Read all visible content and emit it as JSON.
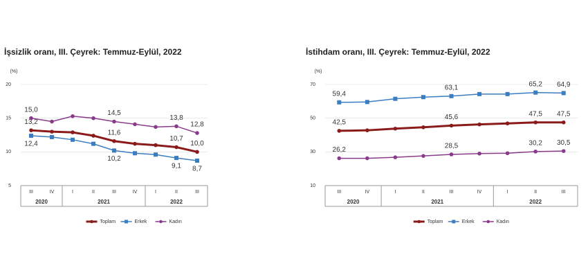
{
  "chart_data": [
    {
      "type": "line",
      "title": "İşsizlik oranı, III. Çeyrek: Temmuz-Eylül, 2022",
      "y_label": "(%)",
      "categories": [
        "III",
        "IV",
        "I",
        "II",
        "III",
        "IV",
        "I",
        "II",
        "III"
      ],
      "groups": [
        {
          "name": "2020",
          "size": 2
        },
        {
          "name": "2021",
          "size": 4
        },
        {
          "name": "2022",
          "size": 3
        }
      ],
      "ylim": [
        5,
        20
      ],
      "yticks": [
        5,
        10,
        15,
        20
      ],
      "series": [
        {
          "name": "Toplam",
          "color": "#8b1a1a",
          "width": 3,
          "marker": "circle",
          "label_position": "above",
          "values": [
            13.2,
            13.0,
            12.9,
            12.4,
            11.6,
            11.2,
            11.0,
            10.7,
            10.0
          ],
          "value_labels": [
            "13,2",
            null,
            null,
            null,
            "11,6",
            null,
            null,
            "10,7",
            "10,0"
          ]
        },
        {
          "name": "Erkek",
          "color": "#3a7dc0",
          "width": 1.5,
          "marker": "square",
          "label_position": "below",
          "values": [
            12.4,
            12.2,
            11.8,
            11.2,
            10.2,
            9.8,
            9.6,
            9.1,
            8.7
          ],
          "value_labels": [
            "12,4",
            null,
            null,
            null,
            "10,2",
            null,
            null,
            "9,1",
            "8,7"
          ]
        },
        {
          "name": "Kadın",
          "color": "#8a3a8a",
          "width": 1.5,
          "marker": "circle",
          "label_position": "above",
          "values": [
            15.0,
            14.5,
            15.3,
            15.0,
            14.5,
            14.1,
            13.7,
            13.8,
            12.8
          ],
          "value_labels": [
            "15,0",
            null,
            null,
            null,
            "14,5",
            null,
            null,
            "13,8",
            "12,8"
          ]
        }
      ]
    },
    {
      "type": "line",
      "title": "İstihdam oranı, III. Çeyrek: Temmuz-Eylül, 2022",
      "y_label": "(%)",
      "categories": [
        "III",
        "IV",
        "I",
        "II",
        "III",
        "IV",
        "I",
        "II",
        "III"
      ],
      "groups": [
        {
          "name": "2020",
          "size": 2
        },
        {
          "name": "2021",
          "size": 4
        },
        {
          "name": "2022",
          "size": 3
        }
      ],
      "ylim": [
        10,
        70
      ],
      "yticks": [
        10,
        30,
        50,
        70
      ],
      "series": [
        {
          "name": "Toplam",
          "color": "#8b1a1a",
          "width": 3,
          "marker": "circle",
          "label_position": "above",
          "values": [
            42.5,
            42.8,
            43.8,
            44.6,
            45.6,
            46.3,
            46.9,
            47.5,
            47.5
          ],
          "value_labels": [
            "42,5",
            null,
            null,
            null,
            "45,6",
            null,
            null,
            "47,5",
            "47,5"
          ]
        },
        {
          "name": "Erkek",
          "color": "#3a7dc0",
          "width": 1.5,
          "marker": "square",
          "label_position": "above",
          "values": [
            59.4,
            59.6,
            61.5,
            62.5,
            63.1,
            64.3,
            64.3,
            65.2,
            64.9
          ],
          "value_labels": [
            "59,4",
            null,
            null,
            null,
            "63,1",
            null,
            null,
            "65,2",
            "64,9"
          ]
        },
        {
          "name": "Kadın",
          "color": "#8a3a8a",
          "width": 1.5,
          "marker": "circle",
          "label_position": "above",
          "values": [
            26.2,
            26.2,
            26.8,
            27.6,
            28.5,
            29.0,
            29.2,
            30.2,
            30.5
          ],
          "value_labels": [
            "26,2",
            null,
            null,
            null,
            "28,5",
            null,
            null,
            "30,2",
            "30,5"
          ]
        }
      ]
    }
  ]
}
